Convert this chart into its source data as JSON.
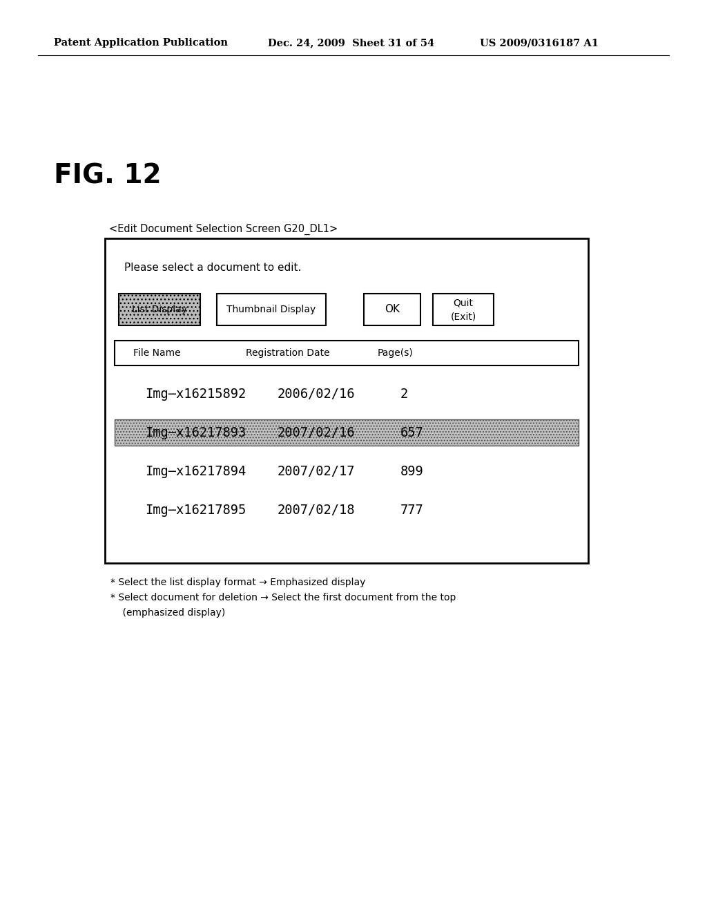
{
  "background_color": "#ffffff",
  "header_left": "Patent Application Publication",
  "header_mid": "Dec. 24, 2009  Sheet 31 of 54",
  "header_right": "US 2009/0316187 A1",
  "fig_label": "FIG. 12",
  "screen_label": "<Edit Document Selection Screen G20_DL1>",
  "instruction": "Please select a document to edit.",
  "btn_list_display": "List Display",
  "btn_thumbnail": "Thumbnail Display",
  "btn_ok": "OK",
  "btn_quit_line1": "Quit",
  "btn_quit_line2": "(Exit)",
  "col_filename": "File Name",
  "col_regdate": "Registration Date",
  "col_pages": "Page(s)",
  "rows": [
    {
      "filename": "Img–x16215892",
      "date": "2006/02/16",
      "pages": "2",
      "highlight": false
    },
    {
      "filename": "Img–x16217893",
      "date": "2007/02/16",
      "pages": "657",
      "highlight": true
    },
    {
      "filename": "Img–x16217894",
      "date": "2007/02/17",
      "pages": "899",
      "highlight": false
    },
    {
      "filename": "Img–x16217895",
      "date": "2007/02/18",
      "pages": "777",
      "highlight": false
    }
  ],
  "note1": "* Select the list display format → Emphasized display",
  "note2": "* Select document for deletion → Select the first document from the top",
  "note3": "    (emphasized display)"
}
